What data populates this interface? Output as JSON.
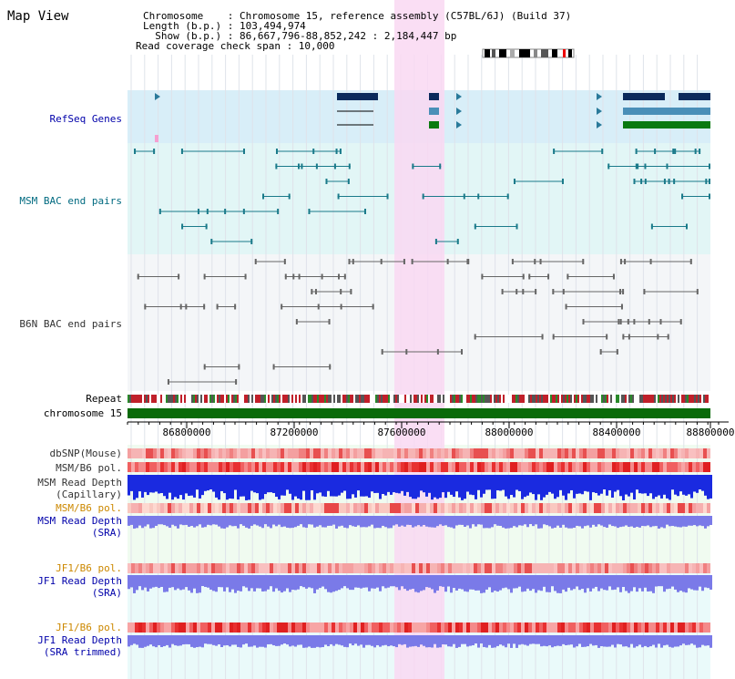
{
  "header": {
    "title": "Map View",
    "info_lines": [
      "Chromosome    : Chromosome 15, reference assembly (C57BL/6J) (Build 37)",
      "Length (b.p.) : 103,494,974",
      "  Show (b.p.) : 86,667,796-88,852,242 : 2,184,447 bp",
      "Read coverage check span : 10,000"
    ]
  },
  "tracks": {
    "refseq_genes": "RefSeq Genes",
    "msm_bac": "MSM BAC end pairs",
    "b6n_bac": "B6N BAC end pairs",
    "repeat": "Repeat",
    "chromosome": "chromosome 15",
    "dbsnp": "dbSNP(Mouse)",
    "msm_b6_pol_1": "MSM/B6 pol.",
    "msm_read_depth_cap_1": "MSM Read Depth",
    "msm_read_depth_cap_2": "(Capillary)",
    "msm_b6_pol_2": "MSM/B6 pol.",
    "msm_read_depth_sra_1": "MSM Read Depth",
    "msm_read_depth_sra_2": "(SRA)",
    "jf1_b6_pol_1": "JF1/B6 pol.",
    "jf1_read_depth_sra_1": "JF1 Read Depth",
    "jf1_read_depth_sra_2": "(SRA)",
    "jf1_b6_pol_2": "JF1/B6 pol.",
    "jf1_read_depth_trim_1": "JF1 Read Depth",
    "jf1_read_depth_trim_2": "(SRA trimmed)"
  },
  "axis": {
    "ticks": [
      "86800000",
      "87200000",
      "87600000",
      "88000000",
      "88400000",
      "88800000"
    ],
    "tick_values": [
      86800000,
      87200000,
      87600000,
      88000000,
      88400000,
      88800000
    ],
    "range": [
      86667796,
      88852242
    ]
  },
  "colors": {
    "label_blue": "#0000aa",
    "label_teal": "#006a80",
    "label_gray": "#333333",
    "label_orange": "#cc8800",
    "highlight": "#f9d8f2",
    "refseq_bg": "#d8eef8",
    "msm_bg": "#e2f6f6",
    "gene_dark": "#0a2a5c",
    "gene_mid": "#4a8fb8",
    "gene_green": "#0a7a10",
    "chrom_green": "#0a6a0a"
  }
}
